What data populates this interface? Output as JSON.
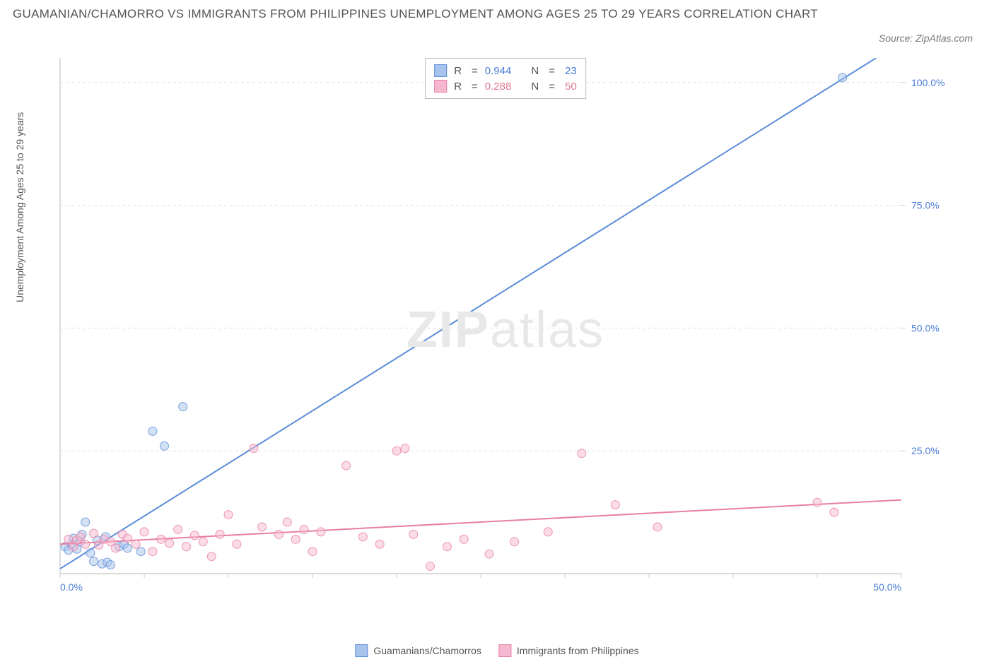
{
  "title": "GUAMANIAN/CHAMORRO VS IMMIGRANTS FROM PHILIPPINES UNEMPLOYMENT AMONG AGES 25 TO 29 YEARS CORRELATION CHART",
  "source": "Source: ZipAtlas.com",
  "watermark_bold": "ZIP",
  "watermark_light": "atlas",
  "y_axis_label": "Unemployment Among Ages 25 to 29 years",
  "chart": {
    "type": "scatter",
    "background_color": "#ffffff",
    "grid_color": "#e0e0e0",
    "axis_color": "#d0d0d0",
    "tick_color": "#cccccc",
    "xlim": [
      0,
      50
    ],
    "ylim": [
      0,
      105
    ],
    "x_ticks": [
      0,
      5,
      10,
      15,
      20,
      25,
      30,
      35,
      40,
      45,
      50
    ],
    "x_tick_labels": {
      "0": "0.0%",
      "50": "50.0%"
    },
    "y_ticks": [
      25,
      50,
      75,
      100
    ],
    "y_tick_labels": {
      "25": "25.0%",
      "50": "50.0%",
      "75": "75.0%",
      "100": "100.0%"
    },
    "tick_label_color": "#4a7dd6",
    "tick_label_fontsize": 14,
    "marker_radius": 6,
    "marker_opacity": 0.5,
    "line_width": 2,
    "series": [
      {
        "name": "Guamanians/Chamorros",
        "color": "#5a8dd8",
        "fill_color": "#a8c4ec",
        "R": "0.944",
        "N": "23",
        "points": [
          [
            0.3,
            5.5
          ],
          [
            0.5,
            4.8
          ],
          [
            0.7,
            6.0
          ],
          [
            0.8,
            7.2
          ],
          [
            1.0,
            5.0
          ],
          [
            1.2,
            6.5
          ],
          [
            1.3,
            8.0
          ],
          [
            1.5,
            10.5
          ],
          [
            1.8,
            4.2
          ],
          [
            2.0,
            2.5
          ],
          [
            2.2,
            6.8
          ],
          [
            2.5,
            2.0
          ],
          [
            2.7,
            7.5
          ],
          [
            2.8,
            2.3
          ],
          [
            3.0,
            1.8
          ],
          [
            3.5,
            5.5
          ],
          [
            3.8,
            6.0
          ],
          [
            4.0,
            5.2
          ],
          [
            4.8,
            4.5
          ],
          [
            5.5,
            29.0
          ],
          [
            6.2,
            26.0
          ],
          [
            7.3,
            34.0
          ],
          [
            46.5,
            101.0
          ]
        ],
        "trend": {
          "x1": 0,
          "y1": 1.0,
          "x2": 48.5,
          "y2": 105.0
        }
      },
      {
        "name": "Immigrants from Philippines",
        "color": "#e880a0",
        "fill_color": "#f5b8d0",
        "R": "0.288",
        "N": "50",
        "points": [
          [
            0.5,
            7.0
          ],
          [
            0.8,
            5.5
          ],
          [
            1.0,
            6.8
          ],
          [
            1.2,
            7.5
          ],
          [
            1.5,
            6.0
          ],
          [
            2.0,
            8.2
          ],
          [
            2.3,
            5.8
          ],
          [
            2.6,
            7.0
          ],
          [
            3.0,
            6.5
          ],
          [
            3.3,
            5.2
          ],
          [
            3.7,
            8.0
          ],
          [
            4.0,
            7.2
          ],
          [
            4.5,
            6.0
          ],
          [
            5.0,
            8.5
          ],
          [
            5.5,
            4.5
          ],
          [
            6.0,
            7.0
          ],
          [
            6.5,
            6.2
          ],
          [
            7.0,
            9.0
          ],
          [
            7.5,
            5.5
          ],
          [
            8.0,
            7.8
          ],
          [
            8.5,
            6.5
          ],
          [
            9.0,
            3.5
          ],
          [
            9.5,
            8.0
          ],
          [
            10.0,
            12.0
          ],
          [
            10.5,
            6.0
          ],
          [
            11.5,
            25.5
          ],
          [
            12.0,
            9.5
          ],
          [
            13.0,
            8.0
          ],
          [
            13.5,
            10.5
          ],
          [
            14.0,
            7.0
          ],
          [
            14.5,
            9.0
          ],
          [
            15.0,
            4.5
          ],
          [
            15.5,
            8.5
          ],
          [
            17.0,
            22.0
          ],
          [
            18.0,
            7.5
          ],
          [
            19.0,
            6.0
          ],
          [
            20.0,
            25.0
          ],
          [
            20.5,
            25.5
          ],
          [
            21.0,
            8.0
          ],
          [
            22.0,
            1.5
          ],
          [
            23.0,
            5.5
          ],
          [
            24.0,
            7.0
          ],
          [
            25.5,
            4.0
          ],
          [
            27.0,
            6.5
          ],
          [
            29.0,
            8.5
          ],
          [
            31.0,
            24.5
          ],
          [
            33.0,
            14.0
          ],
          [
            35.5,
            9.5
          ],
          [
            45.0,
            14.5
          ],
          [
            46.0,
            12.5
          ]
        ],
        "trend": {
          "x1": 0,
          "y1": 6.0,
          "x2": 50,
          "y2": 15.0
        }
      }
    ]
  },
  "legend_stats": [
    {
      "swatch_fill": "#a8c4ec",
      "swatch_border": "#5a8dd8",
      "R_label": "R",
      "R_value": "0.944",
      "N_label": "N",
      "N_value": "23",
      "value_color": "#4a7dd6"
    },
    {
      "swatch_fill": "#f5b8d0",
      "swatch_border": "#e880a0",
      "R_label": "R",
      "R_value": "0.288",
      "N_label": "N",
      "N_value": "50",
      "value_color": "#e07890"
    }
  ],
  "legend_bottom": [
    {
      "swatch_fill": "#a8c4ec",
      "swatch_border": "#5a8dd8",
      "label": "Guamanians/Chamorros"
    },
    {
      "swatch_fill": "#f5b8d0",
      "swatch_border": "#e880a0",
      "label": "Immigrants from Philippines"
    }
  ]
}
